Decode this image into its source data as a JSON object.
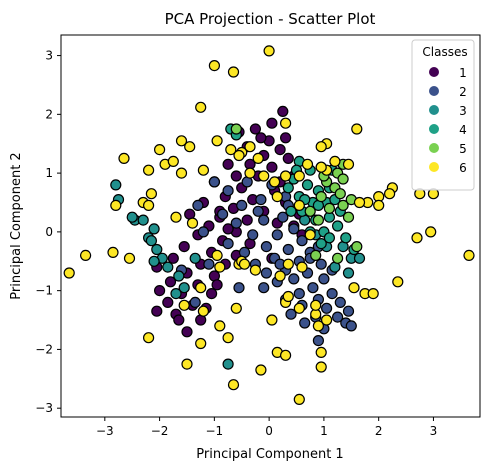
{
  "chart_data": {
    "type": "scatter",
    "title": "PCA Projection - Scatter Plot",
    "xlabel": "Principal Component 1",
    "ylabel": "Principal Component 2",
    "xlim": [
      -3.8,
      3.85
    ],
    "ylim": [
      -3.15,
      3.35
    ],
    "xticks": [
      -3,
      -2,
      -1,
      0,
      1,
      2,
      3
    ],
    "yticks": [
      -3,
      -2,
      -1,
      0,
      1,
      2,
      3
    ],
    "grid": false,
    "legend": {
      "title": "Classes",
      "placement": "top-right"
    },
    "series": [
      {
        "name": "1",
        "color": "#440154",
        "points": [
          [
            0.25,
            2.05
          ],
          [
            0.05,
            1.85
          ],
          [
            -0.25,
            1.75
          ],
          [
            0.3,
            1.6
          ],
          [
            -0.55,
            1.7
          ],
          [
            0.0,
            1.55
          ],
          [
            -0.4,
            1.45
          ],
          [
            0.2,
            1.4
          ],
          [
            -0.1,
            1.3
          ],
          [
            0.35,
            1.25
          ],
          [
            -0.75,
            1.15
          ],
          [
            -0.35,
            1.15
          ],
          [
            0.05,
            1.1
          ],
          [
            -0.6,
            0.95
          ],
          [
            -0.2,
            0.95
          ],
          [
            0.2,
            0.85
          ],
          [
            -1.0,
            0.85
          ],
          [
            -0.5,
            0.75
          ],
          [
            0.1,
            0.7
          ],
          [
            -0.8,
            0.6
          ],
          [
            -0.3,
            0.55
          ],
          [
            0.3,
            0.5
          ],
          [
            -1.2,
            0.5
          ],
          [
            -0.65,
            0.4
          ],
          [
            -0.1,
            0.35
          ],
          [
            -1.45,
            0.3
          ],
          [
            -0.9,
            0.25
          ],
          [
            -0.4,
            0.2
          ],
          [
            0.15,
            0.15
          ],
          [
            -1.1,
            0.1
          ],
          [
            -0.6,
            0.0
          ],
          [
            -1.3,
            -0.05
          ],
          [
            -0.85,
            -0.15
          ],
          [
            -0.35,
            -0.2
          ],
          [
            -1.55,
            -0.25
          ],
          [
            -1.05,
            -0.35
          ],
          [
            -0.6,
            -0.4
          ],
          [
            -1.75,
            -0.45
          ],
          [
            -1.25,
            -0.55
          ],
          [
            -0.8,
            -0.55
          ],
          [
            -2.05,
            -0.6
          ],
          [
            -1.5,
            -0.7
          ],
          [
            -1.0,
            -0.75
          ],
          [
            -1.8,
            -0.85
          ],
          [
            -1.3,
            -0.9
          ],
          [
            -2.0,
            -1.0
          ],
          [
            -1.6,
            -1.05
          ],
          [
            -1.05,
            -1.05
          ],
          [
            -1.85,
            -1.2
          ],
          [
            -1.4,
            -1.25
          ],
          [
            -1.7,
            -1.4
          ],
          [
            -2.05,
            -1.35
          ],
          [
            -1.65,
            -1.5
          ],
          [
            -1.25,
            -1.5
          ],
          [
            -1.5,
            -1.7
          ],
          [
            0.45,
            0.1
          ],
          [
            0.6,
            -0.05
          ],
          [
            -0.95,
            -0.9
          ],
          [
            -1.15,
            -1.3
          ],
          [
            -0.75,
            0.05
          ],
          [
            0.05,
            -0.45
          ],
          [
            -0.15,
            1.6
          ],
          [
            0.45,
            0.95
          ],
          [
            -0.9,
            0.35
          ],
          [
            0.55,
            0.3
          ]
        ]
      },
      {
        "name": "2",
        "color": "#3b528b",
        "points": [
          [
            -1.0,
            0.85
          ],
          [
            -0.75,
            0.7
          ],
          [
            -0.4,
            0.85
          ],
          [
            0.05,
            0.8
          ],
          [
            -0.15,
            0.55
          ],
          [
            -0.5,
            0.45
          ],
          [
            0.3,
            0.6
          ],
          [
            -0.85,
            0.3
          ],
          [
            -1.3,
            0.45
          ],
          [
            -0.6,
            0.15
          ],
          [
            -0.1,
            0.2
          ],
          [
            0.25,
            0.25
          ],
          [
            -1.2,
            0.0
          ],
          [
            0.15,
            -0.05
          ],
          [
            -0.3,
            -0.05
          ],
          [
            0.45,
            0.05
          ],
          [
            -0.75,
            -0.2
          ],
          [
            0.6,
            -0.15
          ],
          [
            -0.05,
            -0.25
          ],
          [
            0.35,
            -0.3
          ],
          [
            -0.45,
            -0.35
          ],
          [
            0.75,
            -0.35
          ],
          [
            0.1,
            -0.45
          ],
          [
            0.55,
            -0.5
          ],
          [
            -0.25,
            -0.55
          ],
          [
            0.95,
            -0.55
          ],
          [
            0.3,
            -0.65
          ],
          [
            -0.05,
            -0.7
          ],
          [
            0.7,
            -0.7
          ],
          [
            -1.6,
            -0.65
          ],
          [
            0.45,
            -0.8
          ],
          [
            1.0,
            -0.8
          ],
          [
            0.15,
            -0.85
          ],
          [
            0.8,
            -0.95
          ],
          [
            -0.1,
            -0.95
          ],
          [
            0.55,
            -1.05
          ],
          [
            1.15,
            -1.05
          ],
          [
            0.3,
            -1.15
          ],
          [
            0.9,
            -1.15
          ],
          [
            1.3,
            -1.2
          ],
          [
            0.6,
            -1.25
          ],
          [
            1.05,
            -1.3
          ],
          [
            1.45,
            -1.35
          ],
          [
            0.85,
            -1.45
          ],
          [
            1.25,
            -1.45
          ],
          [
            0.65,
            -1.55
          ],
          [
            1.4,
            -1.55
          ],
          [
            1.0,
            -1.65
          ],
          [
            1.5,
            -1.6
          ],
          [
            0.9,
            -1.85
          ],
          [
            -1.1,
            -0.55
          ],
          [
            -0.55,
            -0.95
          ],
          [
            0.35,
            0.45
          ],
          [
            -0.2,
            0.35
          ],
          [
            0.9,
            -0.25
          ],
          [
            1.15,
            -0.65
          ],
          [
            0.2,
            -0.55
          ],
          [
            -1.35,
            -1.2
          ],
          [
            0.4,
            -1.4
          ],
          [
            0.75,
            -0.45
          ]
        ]
      },
      {
        "name": "3",
        "color": "#21908d",
        "points": [
          [
            -2.8,
            0.8
          ],
          [
            -2.75,
            0.55
          ],
          [
            -2.45,
            0.2
          ],
          [
            -2.5,
            0.25
          ],
          [
            -2.2,
            -0.1
          ],
          [
            -2.1,
            0.05
          ],
          [
            -2.15,
            -0.15
          ],
          [
            -2.05,
            -0.3
          ],
          [
            -1.95,
            -0.45
          ],
          [
            -2.1,
            -0.5
          ],
          [
            -1.85,
            -0.6
          ],
          [
            -1.65,
            -0.75
          ],
          [
            -1.55,
            -0.95
          ],
          [
            -1.7,
            -1.05
          ],
          [
            -0.75,
            -2.25
          ],
          [
            0.65,
            0.2
          ],
          [
            0.85,
            -0.05
          ],
          [
            1.05,
            -0.25
          ],
          [
            1.35,
            -0.25
          ],
          [
            1.5,
            -0.45
          ],
          [
            1.2,
            -0.6
          ],
          [
            1.45,
            -0.7
          ],
          [
            1.65,
            -0.45
          ],
          [
            -1.35,
            -0.45
          ],
          [
            -2.3,
            0.2
          ]
        ]
      },
      {
        "name": "4",
        "color": "#1fa187",
        "points": [
          [
            -0.7,
            1.75
          ],
          [
            -0.6,
            1.65
          ],
          [
            0.55,
            1.2
          ],
          [
            0.75,
            1.05
          ],
          [
            0.95,
            1.1
          ],
          [
            1.15,
            1.05
          ],
          [
            0.45,
            0.9
          ],
          [
            0.7,
            0.8
          ],
          [
            0.9,
            0.7
          ],
          [
            1.1,
            0.75
          ],
          [
            0.35,
            0.75
          ],
          [
            0.55,
            0.6
          ],
          [
            0.8,
            0.5
          ],
          [
            1.05,
            0.5
          ],
          [
            0.6,
            0.35
          ],
          [
            0.85,
            0.2
          ],
          [
            1.1,
            0.25
          ],
          [
            1.3,
            0.35
          ],
          [
            0.75,
            0.0
          ],
          [
            1.0,
            0.0
          ],
          [
            1.25,
            0.1
          ],
          [
            0.95,
            -0.2
          ],
          [
            1.4,
            -0.1
          ],
          [
            0.5,
            1.05
          ],
          [
            0.65,
            0.55
          ],
          [
            0.9,
            0.45
          ],
          [
            1.2,
            0.55
          ],
          [
            0.4,
            0.35
          ],
          [
            1.1,
            -0.1
          ],
          [
            1.55,
            -0.3
          ]
        ]
      },
      {
        "name": "5",
        "color": "#7ad151",
        "points": [
          [
            -0.6,
            1.75
          ],
          [
            1.35,
            1.15
          ],
          [
            1.25,
            1.0
          ],
          [
            1.05,
            0.85
          ],
          [
            1.2,
            0.75
          ],
          [
            0.95,
            0.6
          ],
          [
            1.3,
            0.65
          ],
          [
            1.1,
            0.4
          ],
          [
            0.75,
            0.35
          ],
          [
            0.9,
            0.2
          ],
          [
            1.5,
            0.55
          ],
          [
            1.35,
            0.9
          ],
          [
            1.45,
            0.25
          ],
          [
            1.6,
            -0.25
          ],
          [
            1.25,
            -0.45
          ],
          [
            0.85,
            -0.4
          ],
          [
            1.0,
            0.95
          ],
          [
            1.35,
            0.45
          ]
        ]
      },
      {
        "name": "6",
        "color": "#fde725",
        "points": [
          [
            0.0,
            3.08
          ],
          [
            -1.0,
            2.83
          ],
          [
            -0.65,
            2.72
          ],
          [
            -1.25,
            2.12
          ],
          [
            0.3,
            1.85
          ],
          [
            -1.6,
            1.55
          ],
          [
            -1.45,
            1.45
          ],
          [
            -0.95,
            1.55
          ],
          [
            -0.7,
            1.4
          ],
          [
            -0.5,
            1.35
          ],
          [
            -2.0,
            1.4
          ],
          [
            -1.9,
            1.15
          ],
          [
            -1.75,
            1.2
          ],
          [
            -2.2,
            1.05
          ],
          [
            -1.6,
            1.0
          ],
          [
            -1.2,
            1.05
          ],
          [
            -2.65,
            1.25
          ],
          [
            -2.15,
            0.65
          ],
          [
            -2.3,
            0.5
          ],
          [
            -2.2,
            0.45
          ],
          [
            -2.8,
            0.45
          ],
          [
            -1.7,
            0.25
          ],
          [
            -1.4,
            0.15
          ],
          [
            -2.55,
            -0.45
          ],
          [
            -2.85,
            -0.35
          ],
          [
            -3.35,
            -0.4
          ],
          [
            -3.65,
            -0.7
          ],
          [
            -2.2,
            -1.8
          ],
          [
            -1.55,
            -1.25
          ],
          [
            -1.25,
            -0.95
          ],
          [
            -0.95,
            -0.4
          ],
          [
            -0.9,
            -0.6
          ],
          [
            -0.55,
            -0.55
          ],
          [
            -0.5,
            -0.5
          ],
          [
            -0.45,
            -0.55
          ],
          [
            -1.2,
            -1.35
          ],
          [
            -1.5,
            -2.25
          ],
          [
            -1.25,
            -1.9
          ],
          [
            -0.6,
            -1.3
          ],
          [
            -0.9,
            -1.6
          ],
          [
            -0.75,
            -1.8
          ],
          [
            -0.65,
            -2.6
          ],
          [
            -0.15,
            -2.35
          ],
          [
            0.05,
            -1.5
          ],
          [
            0.3,
            -1.2
          ],
          [
            0.15,
            -2.05
          ],
          [
            0.3,
            -2.1
          ],
          [
            0.55,
            -1.3
          ],
          [
            0.9,
            -1.6
          ],
          [
            0.95,
            -2.05
          ],
          [
            0.95,
            -2.3
          ],
          [
            0.55,
            -2.85
          ],
          [
            0.35,
            -1.1
          ],
          [
            1.55,
            -0.95
          ],
          [
            1.05,
            -1.5
          ],
          [
            0.85,
            -1.4
          ],
          [
            1.75,
            -1.05
          ],
          [
            1.9,
            -1.05
          ],
          [
            2.35,
            -0.85
          ],
          [
            2.7,
            -0.1
          ],
          [
            2.95,
            0.0
          ],
          [
            3.65,
            -0.4
          ],
          [
            2.75,
            0.65
          ],
          [
            3.0,
            0.65
          ],
          [
            2.25,
            0.75
          ],
          [
            2.0,
            0.6
          ],
          [
            1.8,
            0.5
          ],
          [
            2.2,
            0.65
          ],
          [
            2.0,
            0.45
          ],
          [
            1.65,
            0.5
          ],
          [
            1.6,
            1.75
          ],
          [
            1.05,
            1.5
          ],
          [
            0.95,
            1.45
          ],
          [
            1.45,
            1.15
          ],
          [
            1.2,
            1.2
          ],
          [
            1.05,
            1.05
          ],
          [
            0.95,
            1.1
          ],
          [
            0.7,
            1.15
          ],
          [
            0.55,
            0.95
          ],
          [
            0.3,
            0.95
          ],
          [
            0.1,
            0.85
          ],
          [
            0.15,
            0.6
          ],
          [
            -0.2,
            1.25
          ],
          [
            -0.1,
            0.95
          ],
          [
            -0.35,
            1.0
          ],
          [
            -0.55,
            1.3
          ],
          [
            -0.35,
            1.45
          ],
          [
            0.85,
            -1.25
          ],
          [
            -0.25,
            -0.65
          ],
          [
            0.2,
            -0.75
          ],
          [
            0.35,
            -0.55
          ],
          [
            0.6,
            -0.6
          ],
          [
            0.55,
            0.45
          ],
          [
            0.75,
            -0.05
          ]
        ]
      }
    ]
  }
}
